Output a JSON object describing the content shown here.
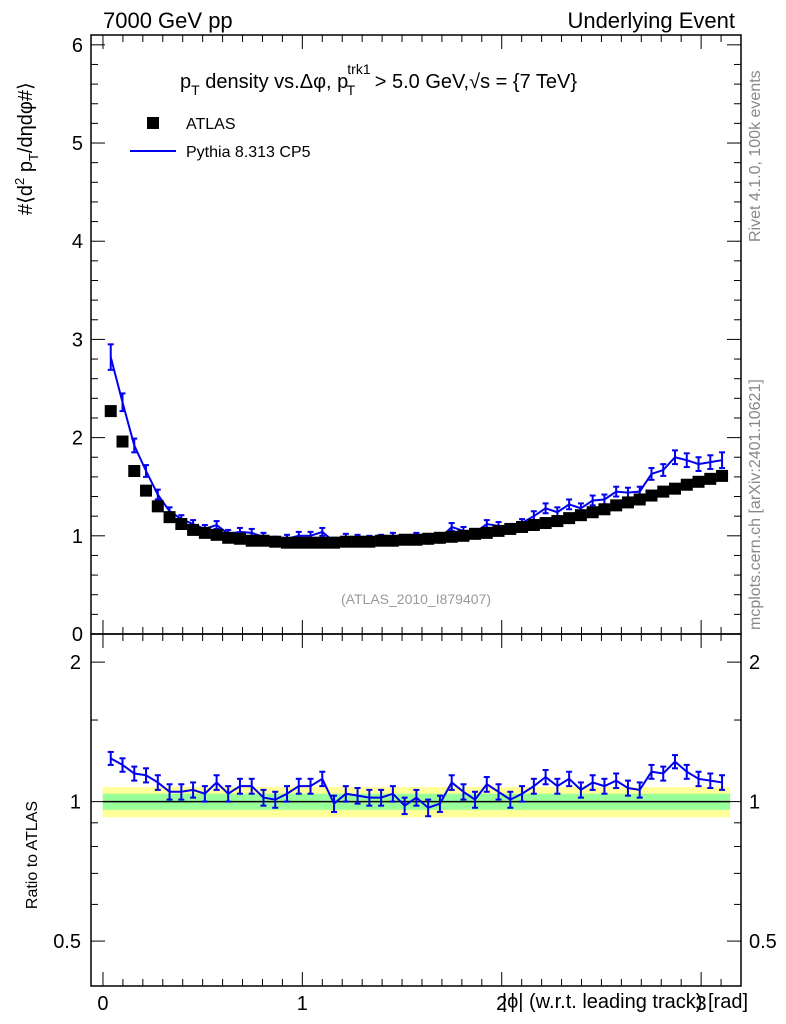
{
  "header": {
    "left": "7000 GeV pp",
    "right": "Underlying Event"
  },
  "side_labels": {
    "rivet": "Rivet 4.1.0,  100k events",
    "mcplots": "mcplots.cern.ch [arXiv:2401.10621]"
  },
  "chart_data": [
    {
      "type": "scatter",
      "panel": "main",
      "title": "p_T density vs.Δφ, p_T^trk1 > 5.0 GeV,√s = {7 TeV}",
      "title_parts": {
        "p": "p",
        "T": "T",
        "density": " density vs.Δφ, p",
        "trk1": "trk1",
        "T2": "T",
        "cut": " > 5.0 GeV,",
        "sqrt": "√",
        "s": "s",
        "energy": " = {7 TeV}"
      },
      "ylabel": "#⟨d² p_T/dηdφ#⟩",
      "ylabel_parts": {
        "a": "#⟨d",
        "sup": "2",
        "b": " p",
        "sub": "T",
        "c": "/dηdφ#⟩"
      },
      "xlim": [
        -0.06,
        3.2
      ],
      "ylim": [
        0,
        6.1
      ],
      "yticks": [
        0,
        1,
        2,
        3,
        4,
        5,
        6
      ],
      "reference_label": "(ATLAS_2010_I879407)",
      "legend": [
        {
          "name": "ATLAS",
          "style": "square-marker",
          "color": "#000000"
        },
        {
          "name": "Pythia 8.313 CP5",
          "style": "line",
          "color": "#0000ee"
        }
      ],
      "x": [
        0.039,
        0.098,
        0.157,
        0.216,
        0.275,
        0.334,
        0.393,
        0.452,
        0.511,
        0.57,
        0.628,
        0.687,
        0.746,
        0.805,
        0.864,
        0.923,
        0.982,
        1.041,
        1.1,
        1.159,
        1.218,
        1.277,
        1.336,
        1.395,
        1.454,
        1.513,
        1.572,
        1.631,
        1.69,
        1.749,
        1.808,
        1.866,
        1.925,
        1.984,
        2.043,
        2.102,
        2.161,
        2.22,
        2.279,
        2.338,
        2.397,
        2.456,
        2.515,
        2.574,
        2.633,
        2.692,
        2.751,
        2.81,
        2.869,
        2.928,
        2.987,
        3.046,
        3.105
      ],
      "series": [
        {
          "name": "ATLAS",
          "values": [
            2.27,
            1.96,
            1.66,
            1.46,
            1.3,
            1.19,
            1.12,
            1.06,
            1.03,
            1.01,
            0.98,
            0.97,
            0.95,
            0.95,
            0.94,
            0.93,
            0.93,
            0.93,
            0.93,
            0.93,
            0.94,
            0.94,
            0.94,
            0.95,
            0.95,
            0.96,
            0.96,
            0.97,
            0.98,
            0.99,
            1.0,
            1.02,
            1.03,
            1.05,
            1.07,
            1.09,
            1.11,
            1.13,
            1.15,
            1.18,
            1.21,
            1.24,
            1.27,
            1.31,
            1.34,
            1.37,
            1.41,
            1.45,
            1.48,
            1.52,
            1.55,
            1.58,
            1.61
          ]
        },
        {
          "name": "Pythia 8.313 CP5",
          "values": [
            2.82,
            2.36,
            1.92,
            1.66,
            1.42,
            1.25,
            1.17,
            1.12,
            1.07,
            1.11,
            1.02,
            1.04,
            1.03,
            0.99,
            0.95,
            0.97,
            1.0,
            1.0,
            1.04,
            0.94,
            0.98,
            0.97,
            0.96,
            0.97,
            0.99,
            0.96,
            0.99,
            0.96,
            0.97,
            1.09,
            1.05,
            1.03,
            1.12,
            1.1,
            1.08,
            1.13,
            1.2,
            1.28,
            1.24,
            1.32,
            1.28,
            1.36,
            1.37,
            1.45,
            1.44,
            1.45,
            1.63,
            1.67,
            1.8,
            1.77,
            1.73,
            1.75,
            1.77
          ],
          "errors": [
            0.13,
            0.09,
            0.07,
            0.06,
            0.05,
            0.04,
            0.04,
            0.04,
            0.04,
            0.04,
            0.04,
            0.04,
            0.04,
            0.04,
            0.04,
            0.04,
            0.04,
            0.04,
            0.04,
            0.04,
            0.04,
            0.04,
            0.04,
            0.04,
            0.04,
            0.04,
            0.04,
            0.04,
            0.04,
            0.04,
            0.04,
            0.04,
            0.04,
            0.04,
            0.04,
            0.04,
            0.05,
            0.05,
            0.05,
            0.05,
            0.05,
            0.05,
            0.05,
            0.05,
            0.05,
            0.05,
            0.06,
            0.06,
            0.07,
            0.07,
            0.07,
            0.07,
            0.08
          ]
        }
      ]
    },
    {
      "type": "line",
      "panel": "ratio",
      "ylabel": "Ratio to ATLAS",
      "xlabel": "|ϕ| (w.r.t. leading track) [rad]",
      "xticks": [
        0,
        1,
        2,
        3
      ],
      "yticks": [
        0.5,
        1,
        2
      ],
      "ylim": [
        0.4,
        2.3
      ],
      "yscale": "log",
      "bands": [
        {
          "name": "stat+syst",
          "half_width": 0.075,
          "color": "#ffff99"
        },
        {
          "name": "stat",
          "half_width": 0.04,
          "color": "#99ff99"
        }
      ],
      "series": [
        {
          "name": "Pythia 8.313 CP5",
          "values": [
            1.24,
            1.2,
            1.15,
            1.14,
            1.1,
            1.05,
            1.05,
            1.06,
            1.04,
            1.1,
            1.04,
            1.08,
            1.08,
            1.02,
            1.01,
            1.04,
            1.08,
            1.08,
            1.12,
            0.99,
            1.04,
            1.03,
            1.02,
            1.02,
            1.04,
            0.98,
            1.02,
            0.97,
            0.99,
            1.1,
            1.05,
            1.01,
            1.09,
            1.05,
            1.01,
            1.04,
            1.08,
            1.13,
            1.08,
            1.12,
            1.06,
            1.1,
            1.08,
            1.11,
            1.07,
            1.06,
            1.16,
            1.15,
            1.22,
            1.16,
            1.12,
            1.11,
            1.1
          ],
          "errors": [
            0.04,
            0.04,
            0.04,
            0.04,
            0.04,
            0.04,
            0.04,
            0.04,
            0.04,
            0.04,
            0.04,
            0.04,
            0.04,
            0.04,
            0.04,
            0.04,
            0.04,
            0.04,
            0.04,
            0.04,
            0.04,
            0.04,
            0.04,
            0.04,
            0.04,
            0.04,
            0.04,
            0.04,
            0.04,
            0.04,
            0.04,
            0.04,
            0.04,
            0.04,
            0.04,
            0.04,
            0.04,
            0.04,
            0.04,
            0.04,
            0.04,
            0.04,
            0.04,
            0.04,
            0.04,
            0.04,
            0.04,
            0.04,
            0.04,
            0.04,
            0.04,
            0.04,
            0.04
          ]
        }
      ]
    }
  ]
}
